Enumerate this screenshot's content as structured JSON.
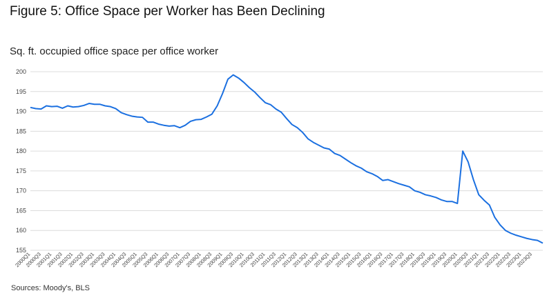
{
  "figure_title": "Figure 5: Office Space per Worker has Been Declining",
  "source": "Sources: Moody's, BLS",
  "chart_data": {
    "type": "line",
    "title": "Sq. ft. occupied office space per office worker",
    "xlabel": "",
    "ylabel": "",
    "ylim": [
      155,
      200
    ],
    "yticks": [
      155,
      160,
      165,
      170,
      175,
      180,
      185,
      190,
      195,
      200
    ],
    "grid": true,
    "line_color": "#1a6fe0",
    "x_tick_labels": [
      "2000Q1",
      "2000Q3",
      "2001Q1",
      "2001Q3",
      "2002Q1",
      "2002Q3",
      "2003Q1",
      "2003Q3",
      "2004Q1",
      "2004Q3",
      "2005Q1",
      "2005Q3",
      "2006Q1",
      "2006Q3",
      "2007Q1",
      "2007Q3",
      "2008Q1",
      "2008Q3",
      "2009Q1",
      "2009Q3",
      "2010Q1",
      "2010Q3",
      "2011Q1",
      "2011Q3",
      "2012Q1",
      "2012Q3",
      "2013Q1",
      "2013Q3",
      "2014Q1",
      "2014Q3",
      "2015Q1",
      "2015Q3",
      "2016Q1",
      "2016Q3",
      "2017Q1",
      "2017Q3",
      "2018Q1",
      "2018Q3",
      "2019Q1",
      "2019Q3",
      "2020Q1",
      "2020Q3",
      "2021Q1",
      "2021Q3",
      "2022Q1",
      "2022Q3",
      "2023Q1",
      "2023Q3"
    ],
    "series": [
      {
        "values": [
          191.0,
          190.7,
          190.6,
          191.4,
          191.2,
          191.3,
          190.8,
          191.4,
          191.1,
          191.2,
          191.5,
          192.0,
          191.8,
          191.8,
          191.4,
          191.2,
          190.7,
          189.7,
          189.2,
          188.8,
          188.6,
          188.5,
          187.3,
          187.3,
          186.8,
          186.5,
          186.3,
          186.4,
          185.9,
          186.5,
          187.5,
          187.9,
          188.0,
          188.6,
          189.3,
          191.4,
          194.5,
          198.1,
          199.2,
          198.4,
          197.3,
          196.0,
          194.9,
          193.5,
          192.2,
          191.7,
          190.6,
          189.8,
          188.2,
          186.7,
          185.9,
          184.7,
          183.1,
          182.2,
          181.5,
          180.8,
          180.5,
          179.4,
          178.9,
          178.0,
          177.1,
          176.3,
          175.7,
          174.8,
          174.3,
          173.6,
          172.6,
          172.8,
          172.3,
          171.8,
          171.4,
          171.0,
          170.0,
          169.6,
          169.0,
          168.7,
          168.3,
          167.7,
          167.3,
          167.3,
          166.8,
          180.0,
          177.3,
          172.8,
          169.0,
          167.6,
          166.4,
          163.3,
          161.4,
          160.0,
          159.3,
          158.8,
          158.4,
          158.0,
          157.7,
          157.5,
          156.8
        ]
      }
    ]
  }
}
